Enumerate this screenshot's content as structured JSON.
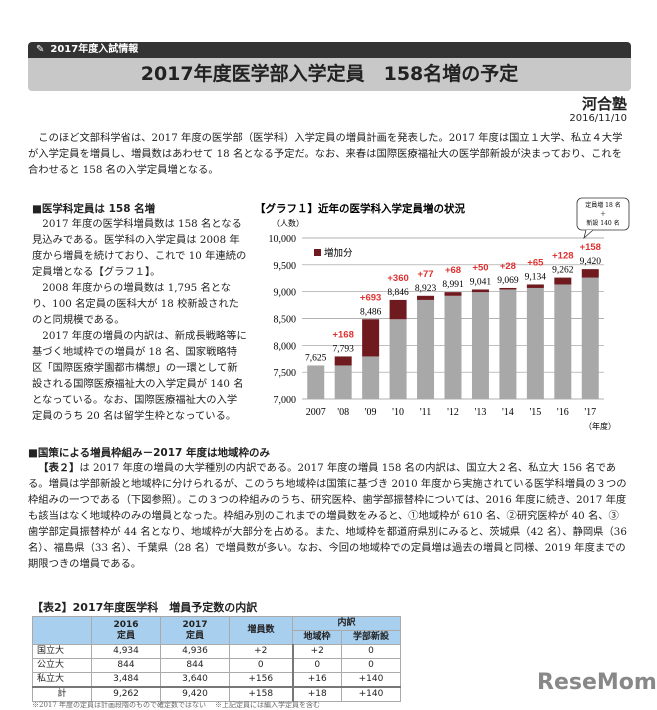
{
  "header": {
    "category": "2017年度入試情報",
    "title": "2017年度医学部入学定員　158名増の予定",
    "publisher": "河合塾",
    "date": "2016/11/10"
  },
  "intro": "このほど文部科学省は、2017 年度の医学部（医学科）入学定員の増員計画を発表した。2017 年度は国立１大学、私立４大学が入学定員を増員し、増員数はあわせて 18 名となる予定だ。なお、来春は国際医療福祉大の医学部新設が決まっており、これを合わせると 158 名の入学定員増となる。",
  "section1": {
    "heading": "■医学科定員は 158 名増",
    "paragraphs": [
      "2017 年度の医学科増員数は 158 名となる見込みである。医学科の入学定員は 2008 年度から増員を続けており、これで 10 年連続の定員増となる【グラフ１】。",
      "2008 年度からの増員数は 1,795 名となり、100 名定員の医科大が 18 校新設されたのと同規模である。",
      "2017 年度の増員の内訳は、新成長戦略等に基づく地域枠での増員が 18 名、国家戦略特区「国際医療学園都市構想」の一環として新設される国際医療福祉大の入学定員が 140 名となっている。なお、国際医療福祉大の入学定員のうち 20 名は留学生枠となっている。"
    ]
  },
  "chart_data": {
    "type": "bar",
    "title": "【グラフ１】近年の医学科入学定員増の状況",
    "ylabel": "（人数）",
    "xlabel": "（年度）",
    "ylim": [
      7000,
      10000
    ],
    "yticks": [
      "7,000",
      "7,500",
      "8,000",
      "8,500",
      "9,000",
      "9,500",
      "10,000"
    ],
    "categories": [
      "2007",
      "'08",
      "'09",
      "'10",
      "'11",
      "'12",
      "'13",
      "'14",
      "'15",
      "'16",
      "'17"
    ],
    "totals": [
      7625,
      7793,
      8486,
      8846,
      8923,
      8991,
      9041,
      9069,
      9134,
      9262,
      9420
    ],
    "total_labels": [
      "7,625",
      "7,793",
      "8,486",
      "8,846",
      "8,923",
      "8,991",
      "9,041",
      "9,069",
      "9,134",
      "9,262",
      "9,420"
    ],
    "increases": [
      0,
      168,
      693,
      360,
      77,
      68,
      50,
      28,
      65,
      128,
      158
    ],
    "increase_labels": [
      "",
      "+168",
      "+693",
      "+360",
      "+77",
      "+68",
      "+50",
      "+28",
      "+65",
      "+128",
      "+158"
    ],
    "legend": "増加分",
    "legend_placement": "top-left",
    "callout": [
      "定員増 18 名",
      "＋",
      "新設 140 名"
    ],
    "colors": {
      "base": "#a8a8a8",
      "increase": "#6e1a1e",
      "label": "#e03030"
    }
  },
  "section2": {
    "heading": "■国策による増員枠組み－2017 年度は地域枠のみ",
    "lead": "【表２】",
    "text": "は 2017 年度の増員の大学種別の内訳である。2017 年度の増員 158 名の内訳は、国立大２名、私立大 156 名である。増員は学部新設と地域枠に分けられるが、このうち地域枠は国策に基づき 2010 年度から実施されている医学科増員の３つの枠組みの一つである（下図参照）。この３つの枠組みのうち、研究医枠、歯学部振替枠については、2016 年度に続き、2017 年度も該当はなく地域枠のみの増員となった。枠組み別のこれまでの増員数をみると、①地域枠が 610 名、②研究医枠が 40 名、③歯学部定員振替枠が 44 名となり、地域枠が大部分を占める。また、地域枠を都道府県別にみると、茨城県（42 名）、静岡県（36 名）、福島県（33 名）、千葉県（28 名）で増員数が多い。なお、今回の地域枠での定員増は過去の増員と同様、2019 年度までの期限つきの増員である。"
  },
  "table": {
    "title": "【表2】2017年度医学科　増員予定数の内訳",
    "headers": {
      "y2016": "2016\n定員",
      "y2017": "2017\n定員",
      "inc": "増員数",
      "breakdown": "内訳",
      "regional": "地域枠",
      "new": "学部新設"
    },
    "rows": [
      [
        "国立大",
        "4,934",
        "4,936",
        "+2",
        "+2",
        "0"
      ],
      [
        "公立大",
        "844",
        "844",
        "0",
        "0",
        "0"
      ],
      [
        "私立大",
        "3,484",
        "3,640",
        "+156",
        "+16",
        "+140"
      ],
      [
        "計",
        "9,262",
        "9,420",
        "+158",
        "+18",
        "+140"
      ]
    ],
    "notes": [
      "※2017 年度の定員は計画段階のもので確定数ではない",
      "※上記定員には編入学定員を含む"
    ]
  },
  "watermark": "ReseMom"
}
